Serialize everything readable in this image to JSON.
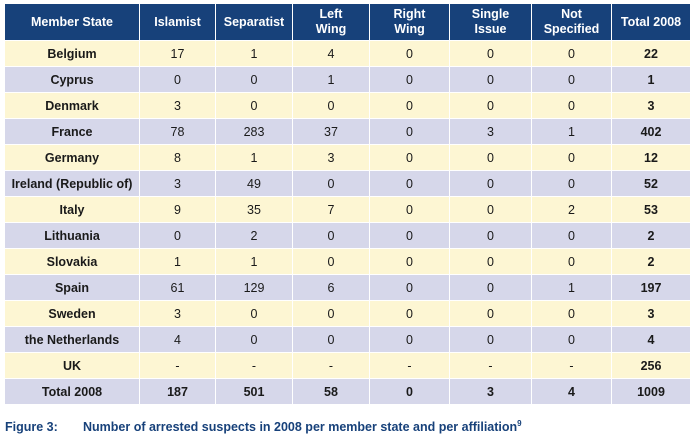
{
  "table": {
    "headers": [
      [
        "Member State"
      ],
      [
        "Islamist"
      ],
      [
        "Separatist"
      ],
      [
        "Left",
        "Wing"
      ],
      [
        "Right",
        "Wing"
      ],
      [
        "Single",
        "Issue"
      ],
      [
        "Not",
        "Specified"
      ],
      [
        "Total 2008"
      ]
    ],
    "rows": [
      [
        "Belgium",
        "17",
        "1",
        "4",
        "0",
        "0",
        "0",
        "22"
      ],
      [
        "Cyprus",
        "0",
        "0",
        "1",
        "0",
        "0",
        "0",
        "1"
      ],
      [
        "Denmark",
        "3",
        "0",
        "0",
        "0",
        "0",
        "0",
        "3"
      ],
      [
        "France",
        "78",
        "283",
        "37",
        "0",
        "3",
        "1",
        "402"
      ],
      [
        "Germany",
        "8",
        "1",
        "3",
        "0",
        "0",
        "0",
        "12"
      ],
      [
        "Ireland (Republic of)",
        "3",
        "49",
        "0",
        "0",
        "0",
        "0",
        "52"
      ],
      [
        "Italy",
        "9",
        "35",
        "7",
        "0",
        "0",
        "2",
        "53"
      ],
      [
        "Lithuania",
        "0",
        "2",
        "0",
        "0",
        "0",
        "0",
        "2"
      ],
      [
        "Slovakia",
        "1",
        "1",
        "0",
        "0",
        "0",
        "0",
        "2"
      ],
      [
        "Spain",
        "61",
        "129",
        "6",
        "0",
        "0",
        "1",
        "197"
      ],
      [
        "Sweden",
        "3",
        "0",
        "0",
        "0",
        "0",
        "0",
        "3"
      ],
      [
        "the Netherlands",
        "4",
        "0",
        "0",
        "0",
        "0",
        "0",
        "4"
      ],
      [
        "UK",
        "-",
        "-",
        "-",
        "-",
        "-",
        "-",
        "256"
      ]
    ],
    "total_row": [
      "Total 2008",
      "187",
      "501",
      "58",
      "0",
      "3",
      "4",
      "1009"
    ]
  },
  "caption": {
    "label": "Figure 3:",
    "text": "Number of arrested suspects in 2008 per member state and per affiliation",
    "footnote": "9"
  },
  "colors": {
    "header_bg": "#17417a",
    "row_odd_bg": "#fdf6d3",
    "row_even_bg": "#d6d7ea",
    "caption_text": "#17417a"
  }
}
